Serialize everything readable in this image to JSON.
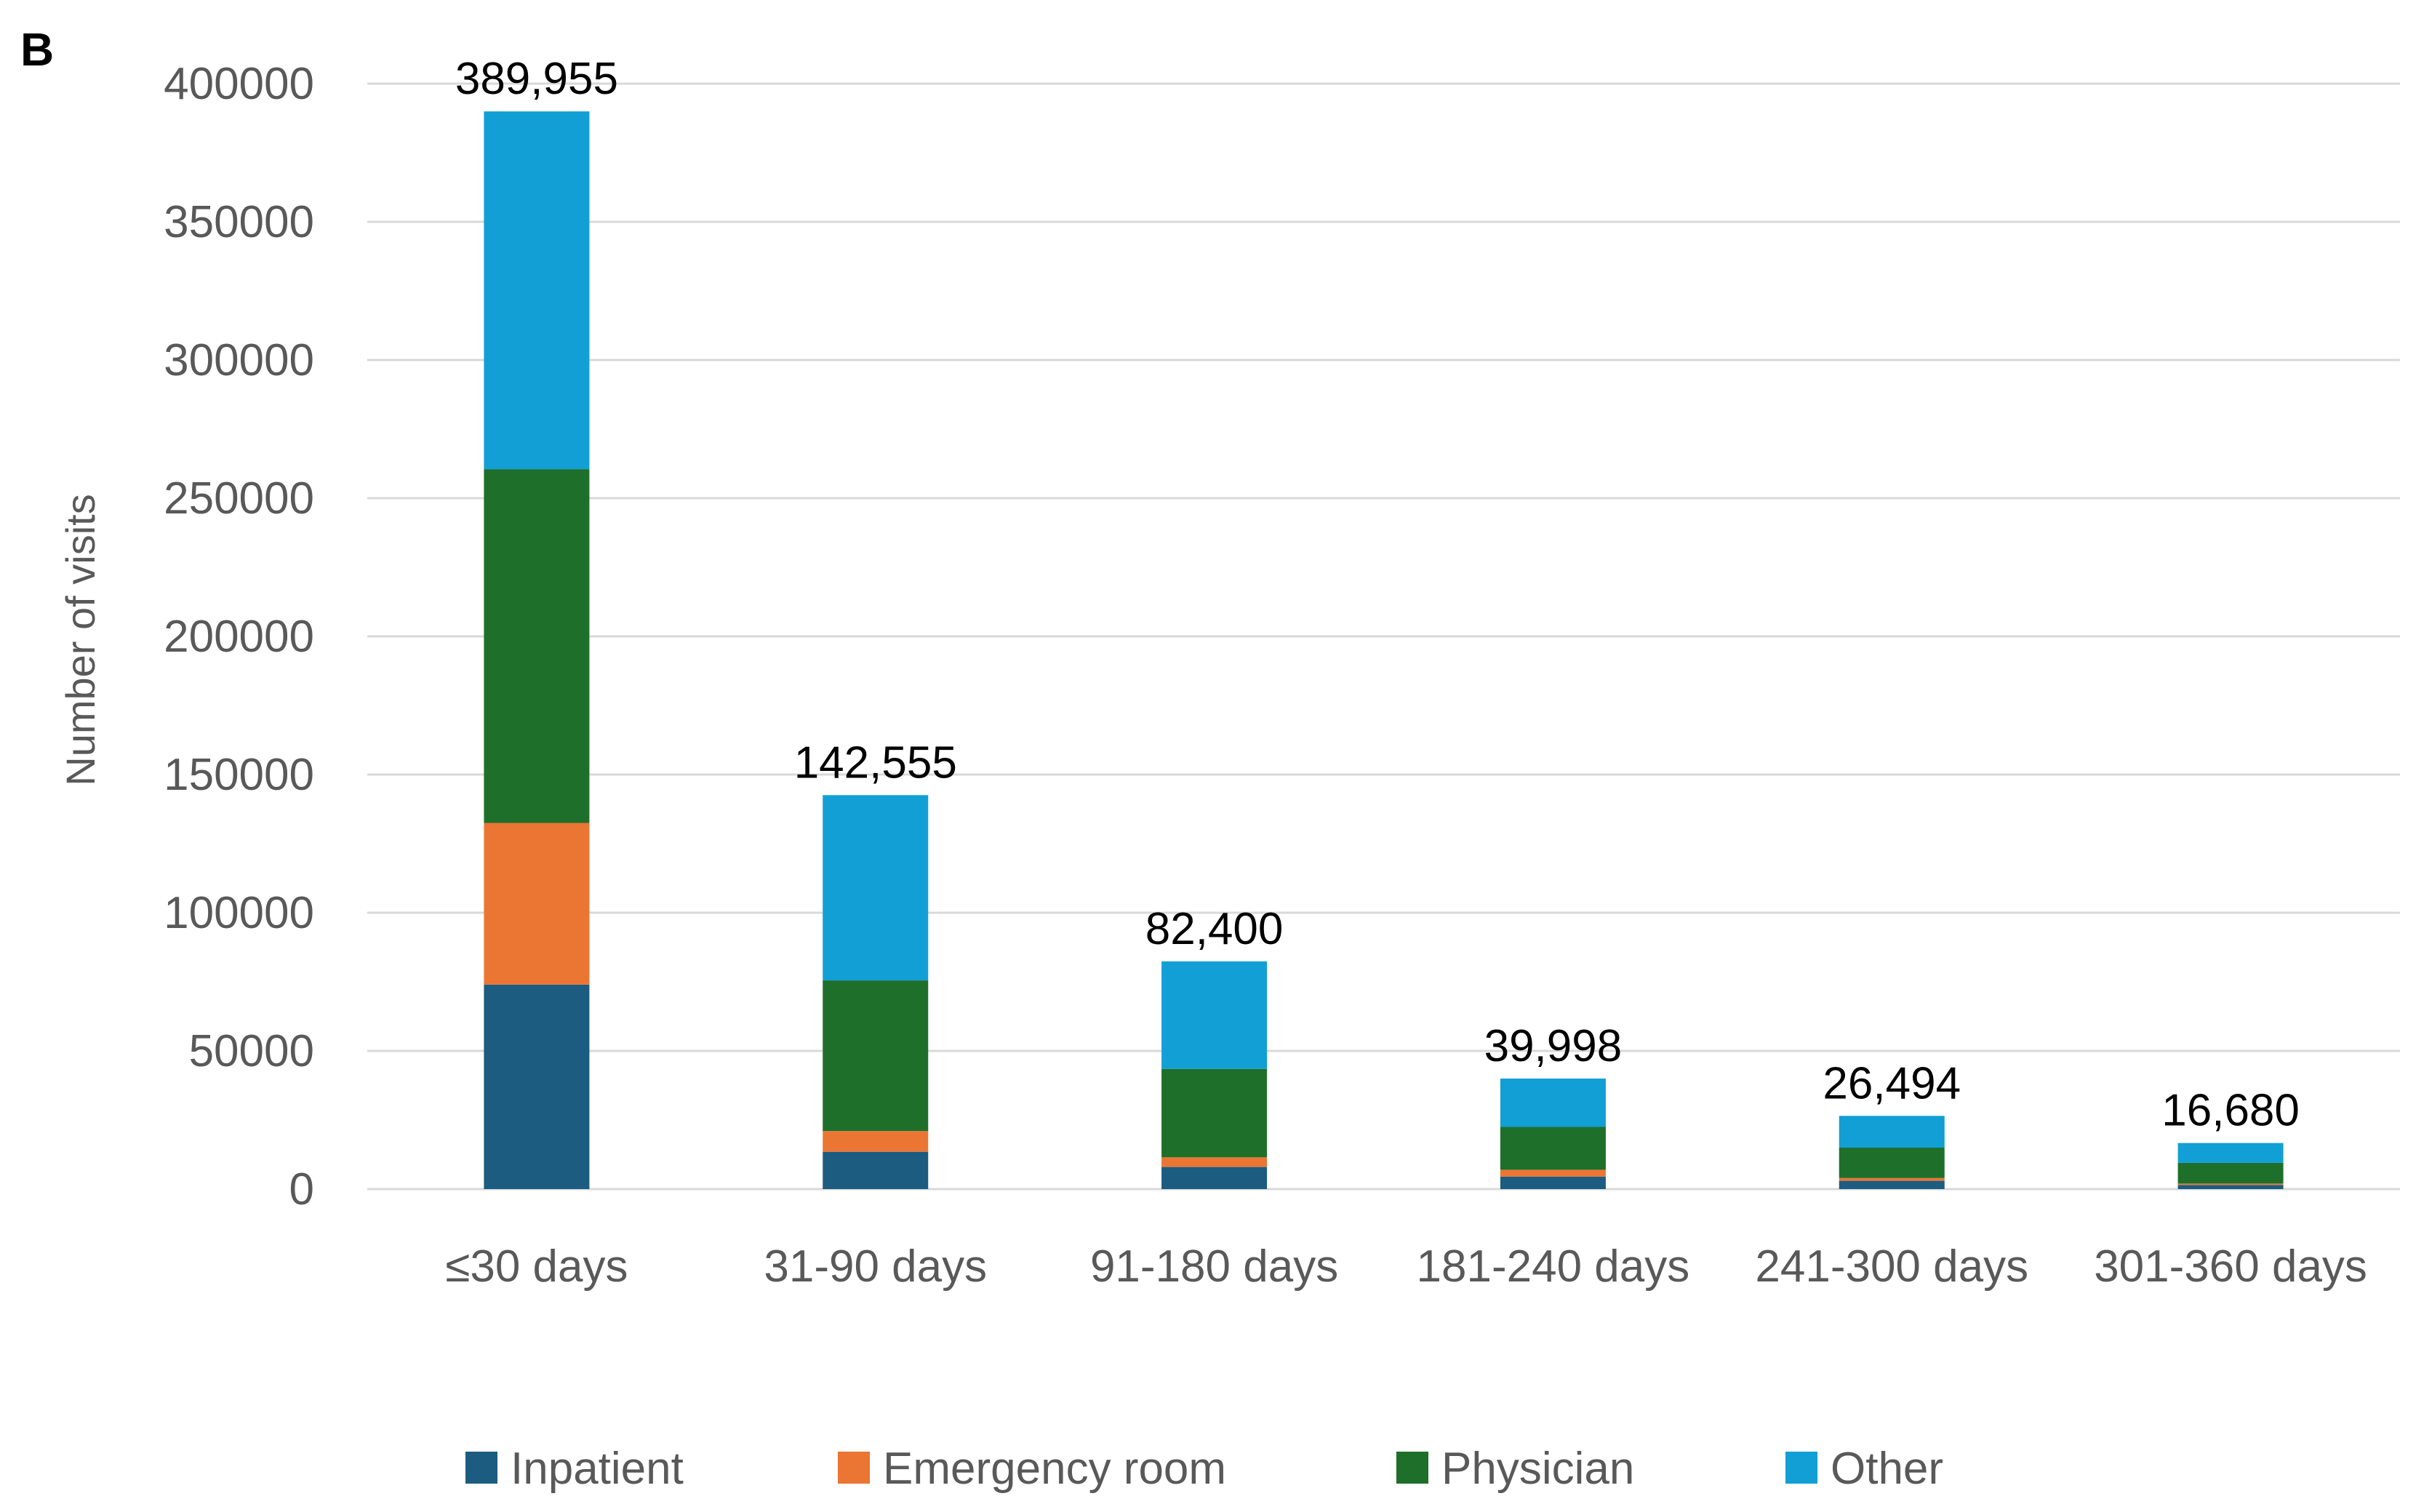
{
  "panel_label": "B",
  "colors": {
    "inpatient": "#1b5c80",
    "emergency_room": "#eb7533",
    "physician": "#1e6f2a",
    "other": "#119fd6",
    "grid": "#d9d9d9",
    "axis_text": "#595959",
    "label_text": "#000000"
  },
  "chart_data": {
    "type": "bar",
    "stacked": true,
    "title": "",
    "xlabel": "",
    "ylabel": "Number of visits",
    "ylim": [
      0,
      400000
    ],
    "yticks": [
      0,
      50000,
      100000,
      150000,
      200000,
      250000,
      300000,
      350000,
      400000
    ],
    "ytick_labels": [
      "0",
      "50000",
      "100000",
      "150000",
      "200000",
      "250000",
      "300000",
      "350000",
      "400000"
    ],
    "grid": true,
    "legend_position": "bottom",
    "categories": [
      "≤30 days",
      "31-90 days",
      "91-180 days",
      "181-240 days",
      "241-300 days",
      "301-360 days"
    ],
    "totals": [
      389955,
      142555,
      82400,
      39998,
      26494,
      16680
    ],
    "total_labels": [
      "389,955",
      "142,555",
      "82,400",
      "39,998",
      "26,494",
      "16,680"
    ],
    "series": [
      {
        "name": "Inpatient",
        "color_key": "inpatient",
        "values": [
          74000,
          13500,
          8000,
          4500,
          3000,
          1500
        ]
      },
      {
        "name": "Emergency room",
        "color_key": "emergency_room",
        "values": [
          58500,
          7500,
          3500,
          2500,
          1000,
          500
        ]
      },
      {
        "name": "Physician",
        "color_key": "physician",
        "values": [
          128000,
          54500,
          32000,
          15500,
          11000,
          7500
        ]
      },
      {
        "name": "Other",
        "color_key": "other",
        "values": [
          129455,
          67055,
          38900,
          17498,
          11494,
          7180
        ]
      }
    ]
  }
}
